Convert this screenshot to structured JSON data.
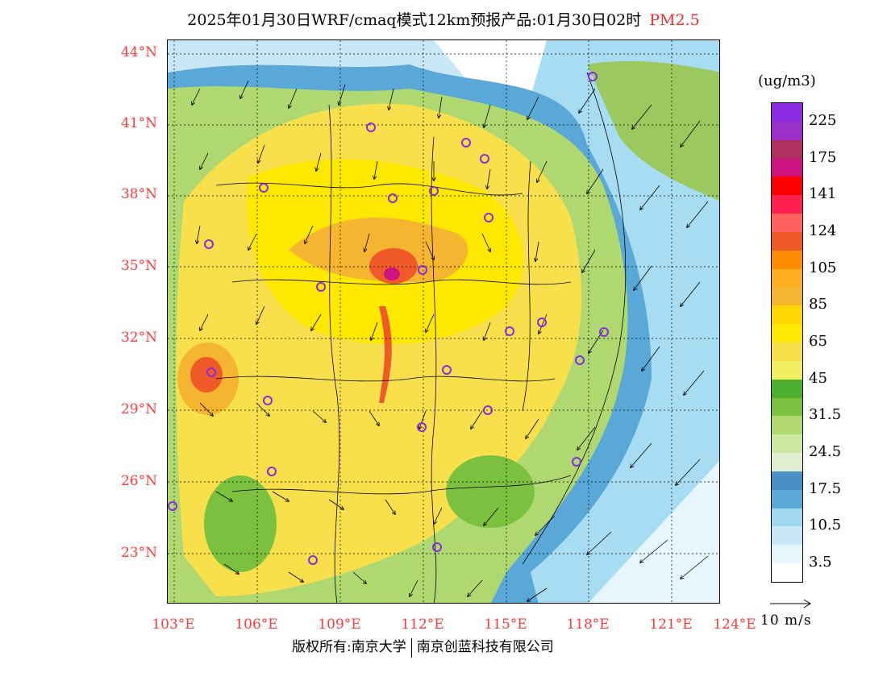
{
  "title": {
    "main": "2025年01月30日WRF/cmaq模式12km预报产品:01月30日02时",
    "pollutant": "PM2.5"
  },
  "lat_labels": [
    "44°N",
    "41°N",
    "38°N",
    "35°N",
    "32°N",
    "29°N",
    "26°N",
    "23°N"
  ],
  "lon_labels": [
    "103°E",
    "106°E",
    "109°E",
    "112°E",
    "115°E",
    "118°E",
    "121°E",
    "124°E"
  ],
  "legend": {
    "unit": "(ug/m3)",
    "labels": [
      "225",
      "175",
      "141",
      "124",
      "105",
      "85",
      "65",
      "45",
      "31.5",
      "24.5",
      "17.5",
      "10.5",
      "3.5"
    ],
    "colors": [
      "#8a2be2",
      "#9b30c8",
      "#b03060",
      "#cc1480",
      "#ff0000",
      "#ff2050",
      "#ff6060",
      "#f05a28",
      "#ff8c00",
      "#ffae20",
      "#f5b530",
      "#ffd700",
      "#ffe800",
      "#f8e04c",
      "#f0f060",
      "#4caf30",
      "#7cc040",
      "#b0d870",
      "#cce8a0",
      "#e0eed0",
      "#4a90c8",
      "#5aa8d8",
      "#a0d8f0",
      "#c8e8f8",
      "#e6f6fc",
      "#ffffff"
    ]
  },
  "wind_reference": "10 m/s",
  "footer": {
    "left": "版权所有:南京大学",
    "right": "南京创蓝科技有限公司"
  }
}
